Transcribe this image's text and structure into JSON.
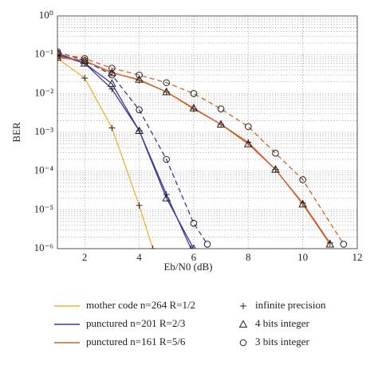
{
  "chart_data": {
    "type": "line",
    "xlabel": "Eb/N0 (dB)",
    "ylabel": "BER",
    "xlim": [
      1,
      12
    ],
    "xticks": [
      2,
      4,
      6,
      8,
      10,
      12
    ],
    "ylim": [
      1e-06,
      1
    ],
    "log_y": true,
    "grid": true,
    "yticks": [
      {
        "value": 1,
        "label": "10⁰"
      },
      {
        "value": 0.1,
        "label": "10⁻¹"
      },
      {
        "value": 0.01,
        "label": "10⁻²"
      },
      {
        "value": 0.001,
        "label": "10⁻³"
      },
      {
        "value": 0.0001,
        "label": "10⁻⁴"
      },
      {
        "value": 1e-05,
        "label": "10⁻⁵"
      },
      {
        "value": 1e-06,
        "label": "10⁻⁶"
      }
    ],
    "legend_codes": [
      {
        "label": "mother code n=264 R=1/2",
        "color": "#f0b030"
      },
      {
        "label": "punctured n=201 R=2/3",
        "color": "#3a3a9a"
      },
      {
        "label": "punctured n=161 R=5/6",
        "color": "#d2602a"
      }
    ],
    "legend_precisions": [
      {
        "label": "infinite precision",
        "marker": "plus"
      },
      {
        "label": "4 bits integer",
        "marker": "triangle"
      },
      {
        "label": "3 bits integer",
        "marker": "circle"
      }
    ],
    "series": [
      {
        "color": "#f0b030",
        "dash": false,
        "marker": "plus",
        "x": [
          1,
          2,
          3,
          4,
          4.5
        ],
        "values": [
          0.08,
          0.025,
          0.0013,
          1.3e-05,
          1e-06
        ]
      },
      {
        "color": "#3a3a9a",
        "dash": false,
        "marker": "plus",
        "x": [
          1,
          2,
          3,
          4,
          5,
          5.9
        ],
        "values": [
          0.1,
          0.06,
          0.013,
          0.0011,
          2.5e-05,
          1e-06
        ]
      },
      {
        "color": "#3a3a9a",
        "dash": false,
        "marker": "triangle",
        "x": [
          1,
          2,
          3,
          4,
          5,
          6
        ],
        "values": [
          0.11,
          0.06,
          0.018,
          0.0011,
          2e-05,
          1e-06
        ]
      },
      {
        "color": "#3a3a9a",
        "dash": true,
        "marker": "circle",
        "x": [
          1,
          2,
          3,
          4,
          5,
          6,
          6.5
        ],
        "values": [
          0.12,
          0.07,
          0.03,
          0.0038,
          0.0002,
          4.5e-06,
          1.3e-06
        ]
      },
      {
        "color": "#d2602a",
        "dash": false,
        "marker": "plus",
        "x": [
          1,
          2,
          3,
          4,
          5,
          6,
          7,
          8,
          9,
          10,
          11
        ],
        "values": [
          0.09,
          0.07,
          0.035,
          0.022,
          0.011,
          0.004,
          0.0016,
          0.00055,
          0.00011,
          1.5e-05,
          1.4e-06
        ]
      },
      {
        "color": "#d2602a",
        "dash": false,
        "marker": "triangle",
        "x": [
          1,
          2,
          3,
          4,
          5,
          6,
          7,
          8,
          9,
          10,
          11
        ],
        "values": [
          0.085,
          0.07,
          0.034,
          0.023,
          0.011,
          0.0042,
          0.0016,
          0.0005,
          0.00011,
          1.4e-05,
          1.3e-06
        ]
      },
      {
        "color": "#d2602a",
        "dash": true,
        "marker": "circle",
        "x": [
          1,
          2,
          3,
          4,
          5,
          6,
          7,
          8,
          9,
          10,
          11.5
        ],
        "values": [
          0.11,
          0.08,
          0.045,
          0.03,
          0.019,
          0.01,
          0.004,
          0.0014,
          0.00029,
          6e-05,
          1.3e-06
        ]
      }
    ]
  }
}
